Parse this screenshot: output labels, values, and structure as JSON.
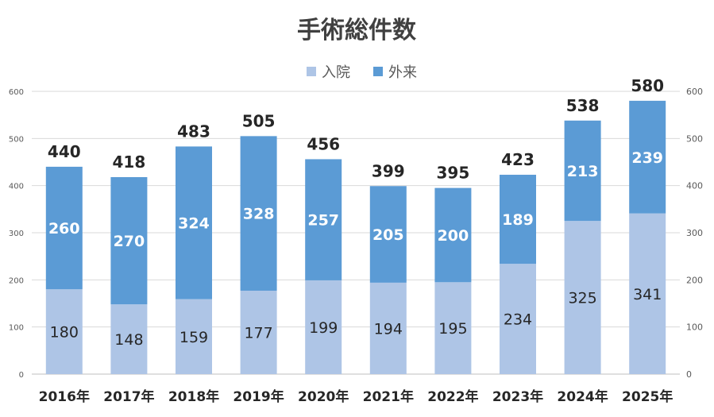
{
  "chart_data": {
    "type": "bar",
    "stacked": true,
    "title": "手術総件数",
    "categories": [
      "2016年",
      "2017年",
      "2018年",
      "2019年",
      "2020年",
      "2021年",
      "2022年",
      "2023年",
      "2024年",
      "2025年"
    ],
    "series": [
      {
        "name": "入院",
        "color": "#aec5e6",
        "values": [
          180,
          148,
          159,
          177,
          199,
          194,
          195,
          234,
          325,
          341
        ]
      },
      {
        "name": "外来",
        "color": "#5b9bd5",
        "values": [
          260,
          270,
          324,
          328,
          257,
          205,
          200,
          189,
          213,
          239
        ]
      }
    ],
    "totals": [
      440,
      418,
      483,
      505,
      456,
      399,
      395,
      423,
      538,
      580
    ],
    "ylim": [
      0,
      600
    ],
    "yticks": [
      0,
      100,
      200,
      300,
      400,
      500,
      600
    ],
    "secondary_axis": true,
    "grid": true,
    "legend_position": "top-center",
    "colors": {
      "gridline": "#d9d9d9",
      "axis_text": "#595959",
      "total_label": "#262626",
      "inner_label_dark": "#262626",
      "inner_label_light": "#ffffff"
    }
  }
}
